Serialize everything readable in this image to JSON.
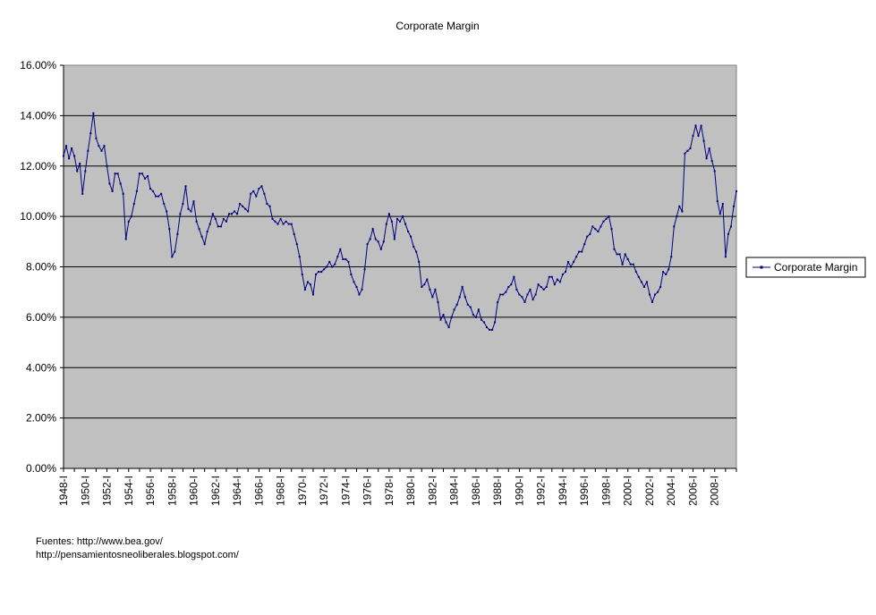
{
  "chart_data": {
    "type": "line",
    "title": "Corporate Margin",
    "xlabel": "",
    "ylabel": "",
    "ylim": [
      0,
      0.16
    ],
    "y_ticks": [
      "0.00%",
      "2.00%",
      "4.00%",
      "6.00%",
      "8.00%",
      "10.00%",
      "12.00%",
      "14.00%",
      "16.00%"
    ],
    "x_ticks": [
      "1948-I",
      "1950-I",
      "1952-I",
      "1954-I",
      "1956-I",
      "1958-I",
      "1960-I",
      "1962-I",
      "1964-I",
      "1966-I",
      "1968-I",
      "1970-I",
      "1972-I",
      "1974-I",
      "1976-I",
      "1978-I",
      "1980-I",
      "1982-I",
      "1984-I",
      "1986-I",
      "1988-I",
      "1990-I",
      "1992-I",
      "1994-I",
      "1996-I",
      "1998-I",
      "2000-I",
      "2002-I",
      "2004-I",
      "2006-I",
      "2008-I"
    ],
    "x_range": [
      "1948-I",
      "2009-III"
    ],
    "grid": true,
    "legend_position": "right",
    "series": [
      {
        "name": "Corporate Margin",
        "color": "#000080",
        "points": [
          [
            1948.0,
            12.4
          ],
          [
            1948.25,
            12.8
          ],
          [
            1948.5,
            12.3
          ],
          [
            1948.75,
            12.7
          ],
          [
            1949.0,
            12.4
          ],
          [
            1949.25,
            11.8
          ],
          [
            1949.5,
            12.1
          ],
          [
            1949.75,
            10.9
          ],
          [
            1950.0,
            11.8
          ],
          [
            1950.25,
            12.6
          ],
          [
            1950.5,
            13.3
          ],
          [
            1950.75,
            14.1
          ],
          [
            1951.0,
            13.1
          ],
          [
            1951.25,
            12.8
          ],
          [
            1951.5,
            12.6
          ],
          [
            1951.75,
            12.8
          ],
          [
            1952.0,
            12.0
          ],
          [
            1952.25,
            11.3
          ],
          [
            1952.5,
            11.0
          ],
          [
            1952.75,
            11.7
          ],
          [
            1953.0,
            11.7
          ],
          [
            1953.25,
            11.3
          ],
          [
            1953.5,
            10.9
          ],
          [
            1953.75,
            9.1
          ],
          [
            1954.0,
            9.8
          ],
          [
            1954.25,
            10.0
          ],
          [
            1954.5,
            10.5
          ],
          [
            1954.75,
            11.0
          ],
          [
            1955.0,
            11.7
          ],
          [
            1955.25,
            11.7
          ],
          [
            1955.5,
            11.5
          ],
          [
            1955.75,
            11.6
          ],
          [
            1956.0,
            11.1
          ],
          [
            1956.25,
            11.0
          ],
          [
            1956.5,
            10.8
          ],
          [
            1956.75,
            10.8
          ],
          [
            1957.0,
            10.9
          ],
          [
            1957.25,
            10.5
          ],
          [
            1957.5,
            10.2
          ],
          [
            1957.75,
            9.5
          ],
          [
            1958.0,
            8.4
          ],
          [
            1958.25,
            8.6
          ],
          [
            1958.5,
            9.3
          ],
          [
            1958.75,
            10.1
          ],
          [
            1959.0,
            10.5
          ],
          [
            1959.25,
            11.2
          ],
          [
            1959.5,
            10.3
          ],
          [
            1959.75,
            10.2
          ],
          [
            1960.0,
            10.6
          ],
          [
            1960.25,
            9.8
          ],
          [
            1960.5,
            9.5
          ],
          [
            1960.75,
            9.2
          ],
          [
            1961.0,
            8.9
          ],
          [
            1961.25,
            9.4
          ],
          [
            1961.5,
            9.7
          ],
          [
            1961.75,
            10.1
          ],
          [
            1962.0,
            9.9
          ],
          [
            1962.25,
            9.6
          ],
          [
            1962.5,
            9.6
          ],
          [
            1962.75,
            9.9
          ],
          [
            1963.0,
            9.8
          ],
          [
            1963.25,
            10.1
          ],
          [
            1963.5,
            10.1
          ],
          [
            1963.75,
            10.2
          ],
          [
            1964.0,
            10.1
          ],
          [
            1964.25,
            10.5
          ],
          [
            1964.5,
            10.4
          ],
          [
            1964.75,
            10.3
          ],
          [
            1965.0,
            10.2
          ],
          [
            1965.25,
            10.9
          ],
          [
            1965.5,
            11.0
          ],
          [
            1965.75,
            10.8
          ],
          [
            1966.0,
            11.1
          ],
          [
            1966.25,
            11.2
          ],
          [
            1966.5,
            10.9
          ],
          [
            1966.75,
            10.5
          ],
          [
            1967.0,
            10.4
          ],
          [
            1967.25,
            9.9
          ],
          [
            1967.5,
            9.8
          ],
          [
            1967.75,
            9.7
          ],
          [
            1968.0,
            9.9
          ],
          [
            1968.25,
            9.7
          ],
          [
            1968.5,
            9.8
          ],
          [
            1968.75,
            9.7
          ],
          [
            1969.0,
            9.7
          ],
          [
            1969.25,
            9.3
          ],
          [
            1969.5,
            8.9
          ],
          [
            1969.75,
            8.4
          ],
          [
            1970.0,
            7.7
          ],
          [
            1970.25,
            7.1
          ],
          [
            1970.5,
            7.4
          ],
          [
            1970.75,
            7.3
          ],
          [
            1971.0,
            6.9
          ],
          [
            1971.25,
            7.7
          ],
          [
            1971.5,
            7.8
          ],
          [
            1971.75,
            7.8
          ],
          [
            1972.0,
            7.9
          ],
          [
            1972.25,
            8.0
          ],
          [
            1972.5,
            8.2
          ],
          [
            1972.75,
            8.0
          ],
          [
            1973.0,
            8.1
          ],
          [
            1973.25,
            8.4
          ],
          [
            1973.5,
            8.7
          ],
          [
            1973.75,
            8.3
          ],
          [
            1974.0,
            8.3
          ],
          [
            1974.25,
            8.2
          ],
          [
            1974.5,
            7.7
          ],
          [
            1974.75,
            7.4
          ],
          [
            1975.0,
            7.2
          ],
          [
            1975.25,
            6.9
          ],
          [
            1975.5,
            7.1
          ],
          [
            1975.75,
            7.9
          ],
          [
            1976.0,
            8.9
          ],
          [
            1976.25,
            9.1
          ],
          [
            1976.5,
            9.5
          ],
          [
            1976.75,
            9.1
          ],
          [
            1977.0,
            9.0
          ],
          [
            1977.25,
            8.7
          ],
          [
            1977.5,
            9.0
          ],
          [
            1977.75,
            9.7
          ],
          [
            1978.0,
            10.1
          ],
          [
            1978.25,
            9.8
          ],
          [
            1978.5,
            9.1
          ],
          [
            1978.75,
            9.9
          ],
          [
            1979.0,
            9.8
          ],
          [
            1979.25,
            10.0
          ],
          [
            1979.5,
            9.7
          ],
          [
            1979.75,
            9.4
          ],
          [
            1980.0,
            9.2
          ],
          [
            1980.25,
            8.8
          ],
          [
            1980.5,
            8.6
          ],
          [
            1980.75,
            8.2
          ],
          [
            1981.0,
            7.2
          ],
          [
            1981.25,
            7.3
          ],
          [
            1981.5,
            7.5
          ],
          [
            1981.75,
            7.1
          ],
          [
            1982.0,
            6.8
          ],
          [
            1982.25,
            7.1
          ],
          [
            1982.5,
            6.6
          ],
          [
            1982.75,
            5.9
          ],
          [
            1983.0,
            6.1
          ],
          [
            1983.25,
            5.8
          ],
          [
            1983.5,
            5.6
          ],
          [
            1983.75,
            6.0
          ],
          [
            1984.0,
            6.3
          ],
          [
            1984.25,
            6.5
          ],
          [
            1984.5,
            6.8
          ],
          [
            1984.75,
            7.2
          ],
          [
            1985.0,
            6.8
          ],
          [
            1985.25,
            6.5
          ],
          [
            1985.5,
            6.4
          ],
          [
            1985.75,
            6.1
          ],
          [
            1986.0,
            6.0
          ],
          [
            1986.25,
            6.3
          ],
          [
            1986.5,
            5.9
          ],
          [
            1986.75,
            5.8
          ],
          [
            1987.0,
            5.6
          ],
          [
            1987.25,
            5.5
          ],
          [
            1987.5,
            5.5
          ],
          [
            1987.75,
            5.8
          ],
          [
            1988.0,
            6.6
          ],
          [
            1988.25,
            6.9
          ],
          [
            1988.5,
            6.9
          ],
          [
            1988.75,
            7.0
          ],
          [
            1989.0,
            7.2
          ],
          [
            1989.25,
            7.3
          ],
          [
            1989.5,
            7.6
          ],
          [
            1989.75,
            7.1
          ],
          [
            1990.0,
            6.9
          ],
          [
            1990.25,
            6.8
          ],
          [
            1990.5,
            6.6
          ],
          [
            1990.75,
            6.9
          ],
          [
            1991.0,
            7.1
          ],
          [
            1991.25,
            6.7
          ],
          [
            1991.5,
            6.9
          ],
          [
            1991.75,
            7.3
          ],
          [
            1992.0,
            7.2
          ],
          [
            1992.25,
            7.1
          ],
          [
            1992.5,
            7.2
          ],
          [
            1992.75,
            7.6
          ],
          [
            1993.0,
            7.6
          ],
          [
            1993.25,
            7.3
          ],
          [
            1993.5,
            7.5
          ],
          [
            1993.75,
            7.4
          ],
          [
            1994.0,
            7.7
          ],
          [
            1994.25,
            7.8
          ],
          [
            1994.5,
            8.2
          ],
          [
            1994.75,
            8.0
          ],
          [
            1995.0,
            8.2
          ],
          [
            1995.25,
            8.4
          ],
          [
            1995.5,
            8.6
          ],
          [
            1995.75,
            8.6
          ],
          [
            1996.0,
            8.9
          ],
          [
            1996.25,
            9.2
          ],
          [
            1996.5,
            9.3
          ],
          [
            1996.75,
            9.6
          ],
          [
            1997.0,
            9.5
          ],
          [
            1997.25,
            9.4
          ],
          [
            1997.5,
            9.6
          ],
          [
            1997.75,
            9.8
          ],
          [
            1998.0,
            9.9
          ],
          [
            1998.25,
            10.0
          ],
          [
            1998.5,
            9.5
          ],
          [
            1998.75,
            8.7
          ],
          [
            1999.0,
            8.5
          ],
          [
            1999.25,
            8.5
          ],
          [
            1999.5,
            8.1
          ],
          [
            1999.75,
            8.5
          ],
          [
            2000.0,
            8.3
          ],
          [
            2000.25,
            8.1
          ],
          [
            2000.5,
            8.1
          ],
          [
            2000.75,
            7.8
          ],
          [
            2001.0,
            7.6
          ],
          [
            2001.25,
            7.4
          ],
          [
            2001.5,
            7.2
          ],
          [
            2001.75,
            7.4
          ],
          [
            2002.0,
            6.9
          ],
          [
            2002.25,
            6.6
          ],
          [
            2002.5,
            6.9
          ],
          [
            2002.75,
            7.0
          ],
          [
            2003.0,
            7.2
          ],
          [
            2003.25,
            7.8
          ],
          [
            2003.5,
            7.7
          ],
          [
            2003.75,
            7.9
          ],
          [
            2004.0,
            8.4
          ],
          [
            2004.25,
            9.6
          ],
          [
            2004.5,
            10.0
          ],
          [
            2004.75,
            10.4
          ],
          [
            2005.0,
            10.2
          ],
          [
            2005.25,
            12.5
          ],
          [
            2005.5,
            12.6
          ],
          [
            2005.75,
            12.7
          ],
          [
            2006.0,
            13.2
          ],
          [
            2006.25,
            13.6
          ],
          [
            2006.5,
            13.2
          ],
          [
            2006.75,
            13.6
          ],
          [
            2007.0,
            13.0
          ],
          [
            2007.25,
            12.3
          ],
          [
            2007.5,
            12.7
          ],
          [
            2007.75,
            12.2
          ],
          [
            2008.0,
            11.8
          ],
          [
            2008.25,
            10.6
          ],
          [
            2008.5,
            10.1
          ],
          [
            2008.75,
            10.5
          ],
          [
            2009.0,
            8.4
          ],
          [
            2009.25,
            9.3
          ],
          [
            2009.5,
            9.6
          ],
          [
            2009.75,
            10.4
          ],
          [
            2010.0,
            11.0
          ]
        ]
      }
    ]
  },
  "sources": {
    "line1": "Fuentes: http://www.bea.gov/",
    "line2": "http://pensamientosneoliberales.blogspot.com/"
  }
}
